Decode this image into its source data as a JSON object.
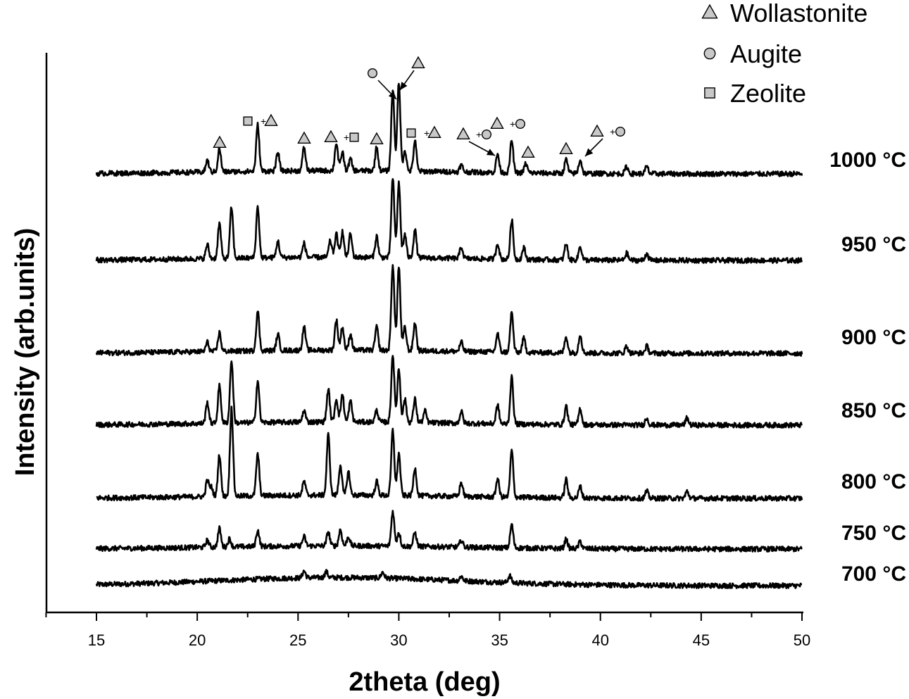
{
  "chart_data": {
    "type": "line",
    "title": "",
    "xlabel": "2theta (deg)",
    "ylabel": "Intensity (arb.units)",
    "xlim": [
      12.5,
      50
    ],
    "xticks": [
      15,
      20,
      25,
      30,
      35,
      40,
      45,
      50
    ],
    "grid": false,
    "legend": {
      "placement": "top-right",
      "entries": [
        {
          "label": "Wollastonite",
          "marker": "triangle"
        },
        {
          "label": "Augite",
          "marker": "circle"
        },
        {
          "label": "Zeolite",
          "marker": "square"
        }
      ]
    },
    "series": [
      {
        "name": "700 °C",
        "label_text": "700 °C",
        "peaks": [
          [
            25.3,
            0.3
          ],
          [
            26.4,
            0.25
          ],
          [
            29.2,
            0.25
          ],
          [
            33.1,
            0.2
          ],
          [
            35.5,
            0.3
          ]
        ]
      },
      {
        "name": "750 °C",
        "label_text": "750 °C",
        "peaks": [
          [
            20.5,
            0.3
          ],
          [
            21.1,
            0.8
          ],
          [
            21.6,
            0.35
          ],
          [
            23.0,
            0.7
          ],
          [
            25.3,
            0.4
          ],
          [
            26.5,
            0.6
          ],
          [
            27.1,
            0.7
          ],
          [
            27.5,
            0.4
          ],
          [
            29.7,
            1.5
          ],
          [
            30.0,
            0.6
          ],
          [
            30.8,
            0.6
          ],
          [
            33.1,
            0.3
          ],
          [
            35.6,
            1.0
          ],
          [
            38.3,
            0.4
          ],
          [
            39.0,
            0.3
          ]
        ]
      },
      {
        "name": "800 °C",
        "label_text": "800 °C",
        "peaks": [
          [
            20.5,
            0.7
          ],
          [
            20.7,
            0.4
          ],
          [
            21.1,
            1.8
          ],
          [
            21.7,
            3.8
          ],
          [
            23.0,
            1.8
          ],
          [
            25.3,
            0.6
          ],
          [
            26.5,
            2.6
          ],
          [
            27.1,
            1.3
          ],
          [
            27.5,
            1.0
          ],
          [
            28.9,
            0.6
          ],
          [
            29.7,
            2.8
          ],
          [
            30.0,
            1.8
          ],
          [
            30.8,
            1.2
          ],
          [
            33.1,
            0.6
          ],
          [
            34.9,
            0.8
          ],
          [
            35.6,
            2.0
          ],
          [
            38.3,
            0.8
          ],
          [
            39.0,
            0.5
          ],
          [
            42.3,
            0.3
          ],
          [
            44.3,
            0.3
          ]
        ]
      },
      {
        "name": "850 °C",
        "label_text": "850 °C",
        "peaks": [
          [
            20.5,
            0.9
          ],
          [
            21.1,
            1.6
          ],
          [
            21.7,
            2.7
          ],
          [
            23.0,
            1.8
          ],
          [
            25.3,
            0.5
          ],
          [
            26.5,
            1.4
          ],
          [
            26.9,
            1.0
          ],
          [
            27.2,
            1.2
          ],
          [
            27.6,
            0.9
          ],
          [
            28.9,
            0.5
          ],
          [
            29.7,
            2.9
          ],
          [
            30.0,
            2.3
          ],
          [
            30.3,
            1.0
          ],
          [
            30.8,
            1.0
          ],
          [
            31.3,
            0.5
          ],
          [
            33.1,
            0.5
          ],
          [
            34.9,
            0.8
          ],
          [
            35.6,
            2.0
          ],
          [
            38.3,
            0.8
          ],
          [
            39.0,
            0.7
          ],
          [
            42.3,
            0.3
          ],
          [
            44.3,
            0.3
          ]
        ]
      },
      {
        "name": "900 °C",
        "label_text": "900 °C",
        "peaks": [
          [
            20.5,
            0.4
          ],
          [
            21.1,
            0.8
          ],
          [
            23.0,
            1.7
          ],
          [
            24.0,
            0.7
          ],
          [
            25.3,
            1.0
          ],
          [
            26.9,
            1.3
          ],
          [
            27.2,
            1.0
          ],
          [
            27.6,
            0.7
          ],
          [
            28.9,
            1.0
          ],
          [
            29.7,
            3.7
          ],
          [
            30.0,
            3.6
          ],
          [
            30.3,
            1.0
          ],
          [
            30.8,
            1.2
          ],
          [
            33.1,
            0.4
          ],
          [
            34.9,
            0.8
          ],
          [
            35.6,
            1.7
          ],
          [
            36.2,
            0.6
          ],
          [
            38.3,
            0.7
          ],
          [
            39.0,
            0.8
          ],
          [
            41.3,
            0.3
          ],
          [
            42.3,
            0.3
          ]
        ]
      },
      {
        "name": "950 °C",
        "label_text": "950 °C",
        "peaks": [
          [
            20.5,
            0.6
          ],
          [
            21.1,
            1.5
          ],
          [
            21.7,
            2.2
          ],
          [
            23.0,
            2.2
          ],
          [
            24.0,
            0.7
          ],
          [
            25.3,
            0.6
          ],
          [
            26.6,
            0.7
          ],
          [
            26.9,
            1.0
          ],
          [
            27.2,
            1.1
          ],
          [
            27.6,
            1.0
          ],
          [
            28.9,
            0.9
          ],
          [
            29.7,
            3.4
          ],
          [
            30.0,
            3.2
          ],
          [
            30.3,
            1.0
          ],
          [
            30.8,
            1.2
          ],
          [
            33.1,
            0.5
          ],
          [
            34.9,
            0.7
          ],
          [
            35.6,
            1.7
          ],
          [
            36.2,
            0.5
          ],
          [
            38.3,
            0.7
          ],
          [
            39.0,
            0.6
          ],
          [
            41.3,
            0.3
          ],
          [
            42.3,
            0.3
          ]
        ]
      },
      {
        "name": "1000 °C",
        "label_text": "1000 °C",
        "peaks": [
          [
            20.5,
            0.5
          ],
          [
            21.1,
            1.0
          ],
          [
            23.0,
            2.0
          ],
          [
            24.0,
            0.8
          ],
          [
            25.3,
            1.0
          ],
          [
            26.9,
            1.2
          ],
          [
            27.2,
            0.8
          ],
          [
            27.6,
            0.5
          ],
          [
            28.9,
            1.0
          ],
          [
            29.7,
            3.5
          ],
          [
            30.0,
            3.8
          ],
          [
            30.3,
            0.9
          ],
          [
            30.8,
            1.3
          ],
          [
            33.1,
            0.3
          ],
          [
            34.9,
            0.8
          ],
          [
            35.6,
            1.4
          ],
          [
            36.3,
            0.4
          ],
          [
            38.3,
            0.6
          ],
          [
            39.0,
            0.6
          ],
          [
            41.3,
            0.3
          ],
          [
            42.3,
            0.3
          ]
        ]
      }
    ],
    "annotations": [
      {
        "label": "triangle",
        "x": 21.2
      },
      {
        "label": "square+triangle",
        "x": 23.0
      },
      {
        "label": "triangle",
        "x": 25.3
      },
      {
        "label": "triangle+square",
        "x": 26.9
      },
      {
        "label": "triangle",
        "x": 28.8
      },
      {
        "label": "circle",
        "x": 29.7,
        "arrow": true
      },
      {
        "label": "triangle",
        "x": 30.0,
        "arrow": true
      },
      {
        "label": "square+triangle",
        "x": 31.1
      },
      {
        "label": "triangle+circle",
        "x": 34.8,
        "arrow": true
      },
      {
        "label": "triangle+circle",
        "x": 35.6
      },
      {
        "label": "triangle",
        "x": 36.3
      },
      {
        "label": "triangle",
        "x": 38.3
      },
      {
        "label": "triangle+circle",
        "x": 39.0,
        "arrow": true
      }
    ]
  }
}
